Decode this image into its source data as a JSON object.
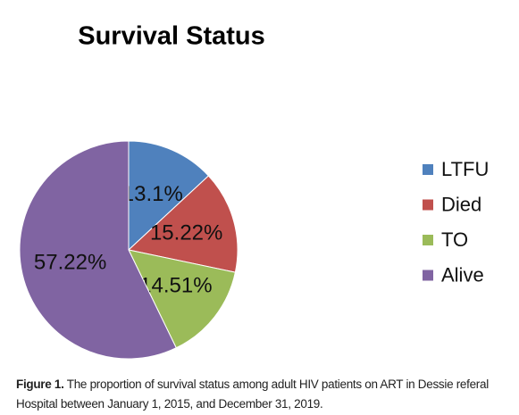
{
  "chart_data": {
    "type": "pie",
    "title": "Survival Status",
    "categories": [
      "LTFU",
      "Died",
      "TO",
      "Alive"
    ],
    "values": [
      13.1,
      15.22,
      14.51,
      57.22
    ],
    "value_labels": [
      "13.1%",
      "15.22%",
      "14.51%",
      "57.22%"
    ],
    "colors": [
      "#4f81bd",
      "#c0504d",
      "#9bbb59",
      "#8064a2"
    ],
    "legend": "right",
    "caption_label": "Figure 1.",
    "caption": "The proportion of survival status among adult HIV patients on ART in Dessie referal Hospital between January 1, 2015, and December 31, 2019."
  }
}
